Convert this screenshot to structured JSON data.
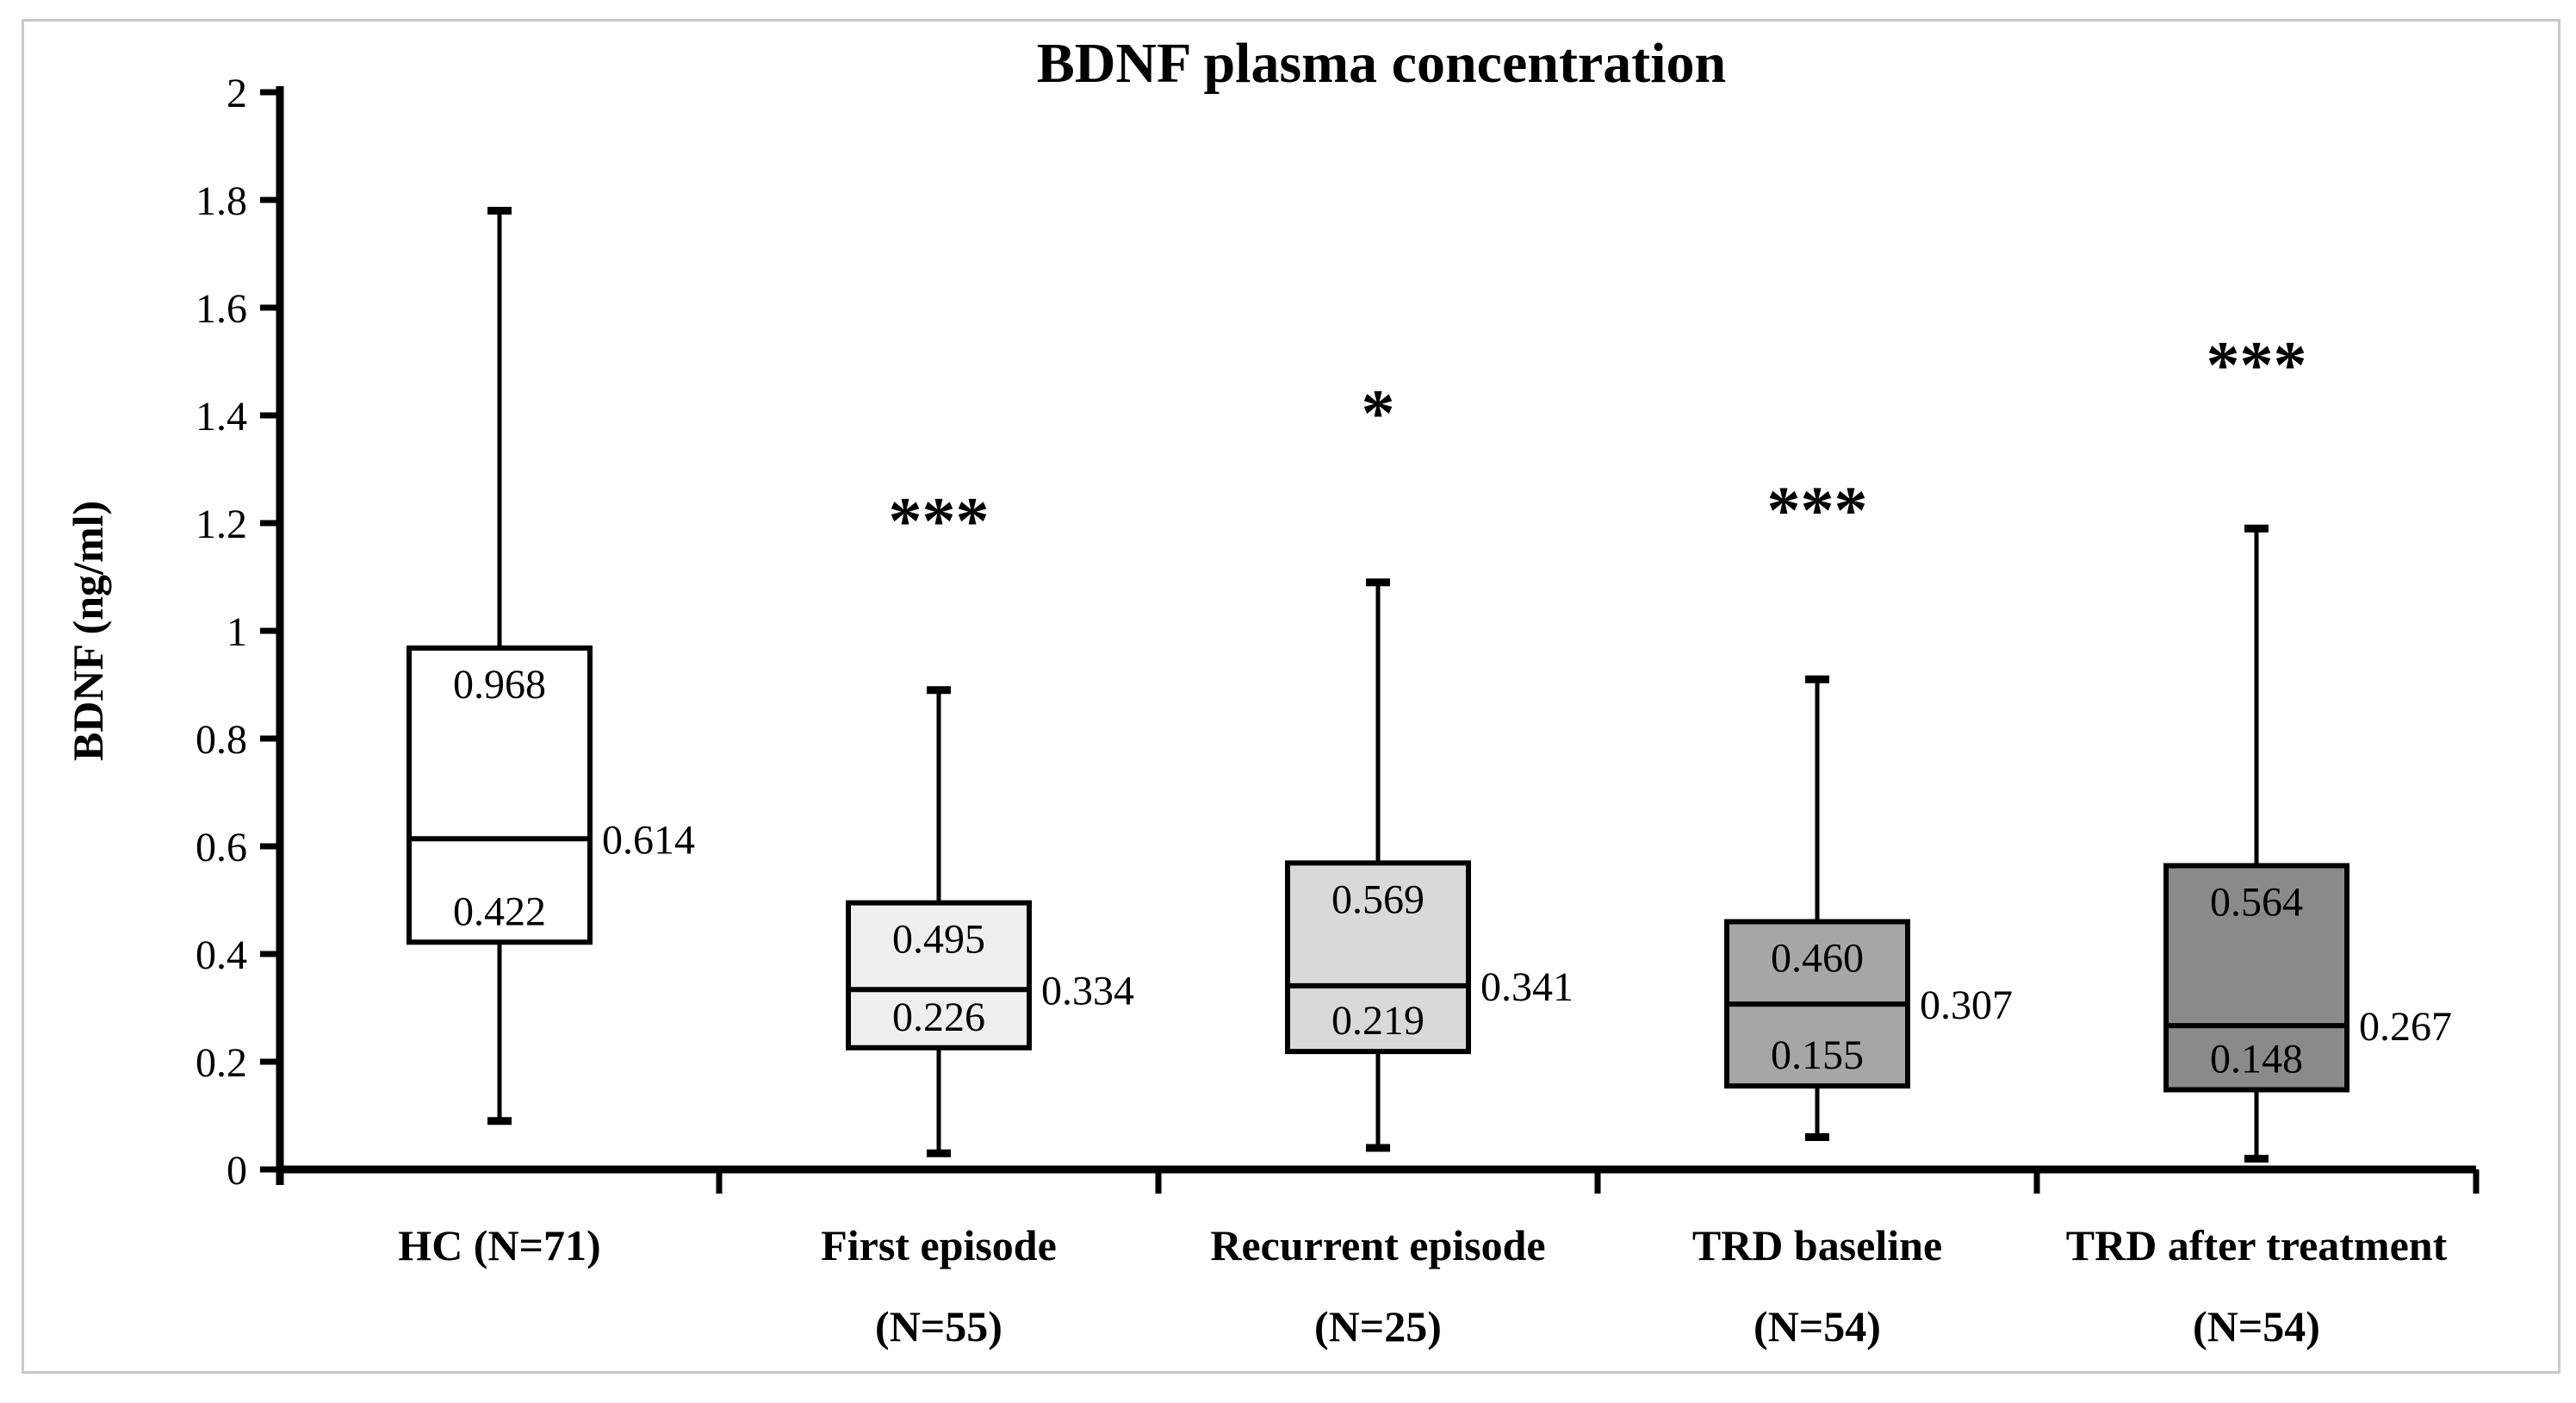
{
  "chart_data": {
    "type": "boxplot",
    "title": "BDNF plasma concentration",
    "ylabel": "BDNF (ng/ml)",
    "xlabel": "",
    "ylim": [
      0,
      2
    ],
    "grid": false,
    "legend": false,
    "yticks": [
      {
        "v": 0,
        "label": "0"
      },
      {
        "v": 0.2,
        "label": "0.2"
      },
      {
        "v": 0.4,
        "label": "0.4"
      },
      {
        "v": 0.6,
        "label": "0.6"
      },
      {
        "v": 0.8,
        "label": "0.8"
      },
      {
        "v": 1,
        "label": "1"
      },
      {
        "v": 1.2,
        "label": "1.2"
      },
      {
        "v": 1.4,
        "label": "1.4"
      },
      {
        "v": 1.6,
        "label": "1.6"
      },
      {
        "v": 1.8,
        "label": "1.8"
      },
      {
        "v": 2,
        "label": "2"
      }
    ],
    "boxes": [
      {
        "category_lines": [
          "HC (N=71)"
        ],
        "n": 71,
        "q1": "0.422",
        "median": "0.614",
        "q3": "0.968",
        "whisker_low": 0.09,
        "whisker_high": 1.78,
        "fill": "#ffffff",
        "significance": "",
        "significance_v": null
      },
      {
        "category_lines": [
          "First episode",
          "(N=55)"
        ],
        "n": 55,
        "q1": "0.226",
        "median": "0.334",
        "q3": "0.495",
        "whisker_low": 0.03,
        "whisker_high": 0.89,
        "fill": "#efefef",
        "significance": "***",
        "significance_v": 1.22
      },
      {
        "category_lines": [
          "Recurrent episode",
          "(N=25)"
        ],
        "n": 25,
        "q1": "0.219",
        "median": "0.341",
        "q3": "0.569",
        "whisker_low": 0.04,
        "whisker_high": 1.09,
        "fill": "#d9d9d9",
        "significance": "*",
        "significance_v": 1.42
      },
      {
        "category_lines": [
          "TRD baseline",
          "(N=54)"
        ],
        "n": 54,
        "q1": "0.155",
        "median": "0.307",
        "q3": "0.460",
        "whisker_low": 0.06,
        "whisker_high": 0.91,
        "fill": "#a6a6a6",
        "significance": "***",
        "significance_v": 1.24
      },
      {
        "category_lines": [
          "TRD after treatment",
          "(N=54)"
        ],
        "n": 54,
        "q1": "0.148",
        "median": "0.267",
        "q3": "0.564",
        "whisker_low": 0.02,
        "whisker_high": 1.19,
        "fill": "#8a8a8a",
        "significance": "***",
        "significance_v": 1.51
      }
    ],
    "colors": {
      "line": "#000000",
      "text": "#000000",
      "frame_border": "#c9c9c9",
      "background": "#ffffff"
    }
  }
}
